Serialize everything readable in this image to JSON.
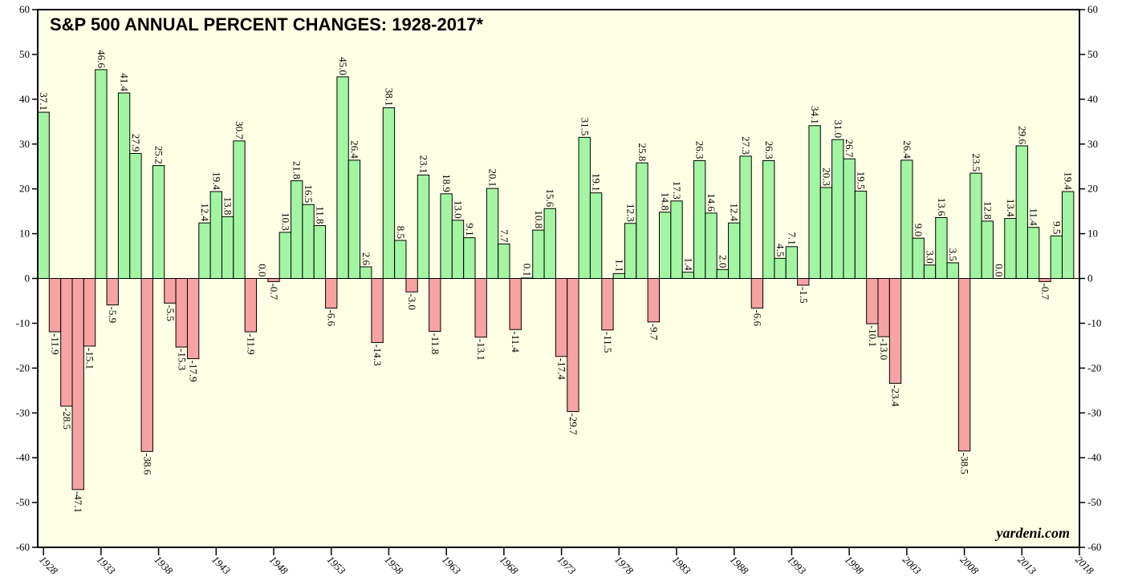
{
  "chart_data": {
    "type": "bar",
    "title": "S&P 500 ANNUAL PERCENT CHANGES: 1928-2017*",
    "annotation": "yardeni.com",
    "x": [
      1928,
      1929,
      1930,
      1931,
      1932,
      1933,
      1934,
      1935,
      1936,
      1937,
      1938,
      1939,
      1940,
      1941,
      1942,
      1943,
      1944,
      1945,
      1946,
      1947,
      1948,
      1949,
      1950,
      1951,
      1952,
      1953,
      1954,
      1955,
      1956,
      1957,
      1958,
      1959,
      1960,
      1961,
      1962,
      1963,
      1964,
      1965,
      1966,
      1967,
      1968,
      1969,
      1970,
      1971,
      1972,
      1973,
      1974,
      1975,
      1976,
      1977,
      1978,
      1979,
      1980,
      1981,
      1982,
      1983,
      1984,
      1985,
      1986,
      1987,
      1988,
      1989,
      1990,
      1991,
      1992,
      1993,
      1994,
      1995,
      1996,
      1997,
      1998,
      1999,
      2000,
      2001,
      2002,
      2003,
      2004,
      2005,
      2006,
      2007,
      2008,
      2009,
      2010,
      2011,
      2012,
      2013,
      2014,
      2015,
      2016,
      2017
    ],
    "values": [
      37.1,
      -11.9,
      -28.5,
      -47.1,
      -15.1,
      46.6,
      -5.9,
      41.4,
      27.9,
      -38.6,
      25.2,
      -5.5,
      -15.3,
      -17.9,
      12.4,
      19.4,
      13.8,
      30.7,
      -11.9,
      0.0,
      -0.7,
      10.3,
      21.8,
      16.5,
      11.8,
      -6.6,
      45.0,
      26.4,
      2.6,
      -14.3,
      38.1,
      8.5,
      -3.0,
      23.1,
      -11.8,
      18.9,
      13.0,
      9.1,
      -13.1,
      20.1,
      7.7,
      -11.4,
      0.1,
      10.8,
      15.6,
      -17.4,
      -29.7,
      31.5,
      19.1,
      -11.5,
      1.1,
      12.3,
      25.8,
      -9.7,
      14.8,
      17.3,
      1.4,
      26.3,
      14.6,
      2.0,
      12.4,
      27.3,
      -6.6,
      26.3,
      4.5,
      7.1,
      -1.5,
      34.1,
      20.3,
      31.0,
      26.7,
      19.5,
      -10.1,
      -13.0,
      -23.4,
      26.4,
      9.0,
      3.0,
      13.6,
      3.5,
      -38.5,
      23.5,
      12.8,
      0.0,
      13.4,
      29.6,
      11.4,
      -0.7,
      9.5,
      19.4
    ],
    "value_labels": [
      "37.1",
      "-11.9",
      "-28.5",
      "-47.1",
      "-15.1",
      "46.6",
      "-5.9",
      "41.4",
      "27.9",
      "-38.6",
      "25.2",
      "-5.5",
      "-15.3",
      "-17.9",
      "12.4",
      "19.4",
      "13.8",
      "30.7",
      "-11.9",
      "0.0",
      "-0.7",
      "10.3",
      "21.8",
      "16.5",
      "11.8",
      "-6.6",
      "45.0",
      "26.4",
      "2.6",
      "-14.3",
      "38.1",
      "8.5",
      "-3.0",
      "23.1",
      "-11.8",
      "18.9",
      "13.0",
      "9.1",
      "-13.1",
      "20.1",
      "7.7",
      "-11.4",
      "0.1",
      "10.8",
      "15.6",
      "-17.4",
      "-29.7",
      "31.5",
      "19.1",
      "-11.5",
      "1.1",
      "12.3",
      "25.8",
      "-9.7",
      "14.8",
      "17.3",
      "1.4",
      "26.3",
      "14.6",
      "2.0",
      "12.4",
      "27.3",
      "-6.6",
      "26.3",
      "4.5",
      "7.1",
      "-1.5",
      "34.1",
      "20.3",
      "31.0",
      "26.7",
      "19.5",
      "-10.1",
      "-13.0",
      "-23.4",
      "26.4",
      "9.0",
      "3.0",
      "13.6",
      "3.5",
      "-38.5",
      "23.5",
      "12.8",
      "0.0",
      "13.4",
      "29.6",
      "11.4",
      "-0.7",
      "9.5",
      "19.4"
    ],
    "positive_color": "#a3f5a3",
    "negative_color": "#f7a3a3",
    "background": "#ffffe6",
    "xlim": [
      1927.5,
      2018
    ],
    "xticks": [
      1928,
      1933,
      1938,
      1943,
      1948,
      1953,
      1958,
      1963,
      1968,
      1973,
      1978,
      1983,
      1988,
      1993,
      1998,
      2003,
      2008,
      2013,
      2018
    ],
    "ylim": [
      -60,
      60
    ],
    "yticks": [
      -60,
      -50,
      -40,
      -30,
      -20,
      -10,
      0,
      10,
      20,
      30,
      40,
      50,
      60
    ]
  }
}
